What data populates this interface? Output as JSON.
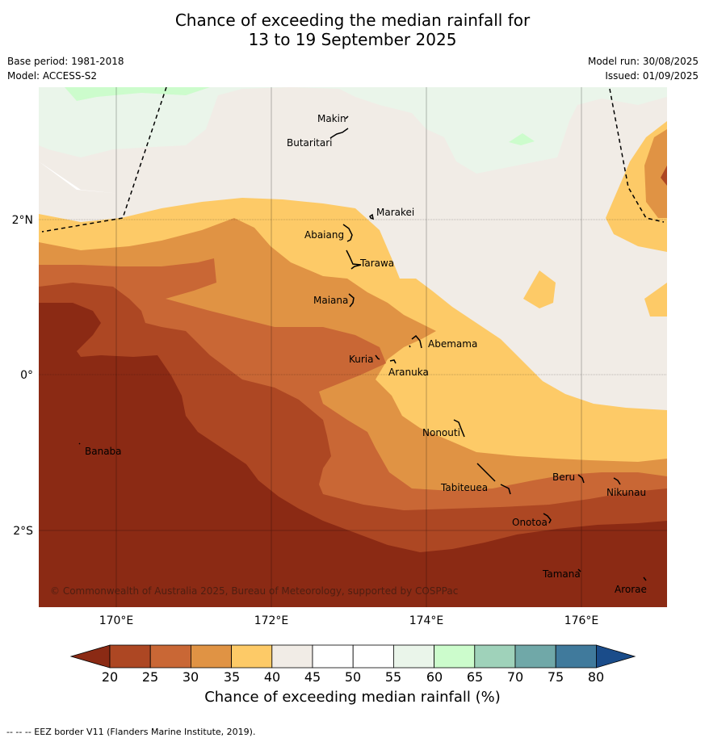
{
  "title": {
    "line1": "Chance of exceeding the median rainfall for",
    "line2": "13 to 19 September 2025"
  },
  "meta": {
    "base_period": "Base period: 1981-2018",
    "model": "Model: ACCESS-S2",
    "model_run": "Model run: 30/08/2025",
    "issued": "Issued: 01/09/2025"
  },
  "map": {
    "lat_labels": [
      "2°N",
      "0°",
      "2°S"
    ],
    "lon_labels": [
      "170°E",
      "172°E",
      "174°E",
      "176°E"
    ],
    "copyright": "© Commonwealth of Australia 2025, Bureau of Meteorology, supported by COSPPac",
    "places": [
      "Makin",
      "Butaritari",
      "Marakei",
      "Abaiang",
      "Tarawa",
      "Maiana",
      "Abemama",
      "Kuria",
      "Aranuka",
      "Banaba",
      "Nonouti",
      "Beru",
      "Tabiteuea",
      "Nikunau",
      "Onotoa",
      "Tamana",
      "Arorae"
    ]
  },
  "colorbar": {
    "ticks": [
      "20",
      "25",
      "30",
      "35",
      "40",
      "45",
      "50",
      "55",
      "60",
      "65",
      "70",
      "75",
      "80"
    ],
    "colors": {
      "below20": "#8b2a14",
      "c20_25": "#ad4723",
      "c25_30": "#c96735",
      "c30_35": "#e09344",
      "c35_40": "#fdca67",
      "c40_45": "#f1ece6",
      "c45_50": "#ffffff",
      "c50_55": "#ffffff",
      "c55_60": "#eaf5ea",
      "c60_65": "#ccfccc",
      "c65_70": "#9fd2ba",
      "c70_75": "#70a8a8",
      "c75_80": "#407a9c",
      "above80": "#1a4c8a"
    },
    "label": "Chance of exceeding median rainfall (%)"
  },
  "footer": "--  --  -- EEZ border V11 (Flanders Marine Institute, 2019)."
}
